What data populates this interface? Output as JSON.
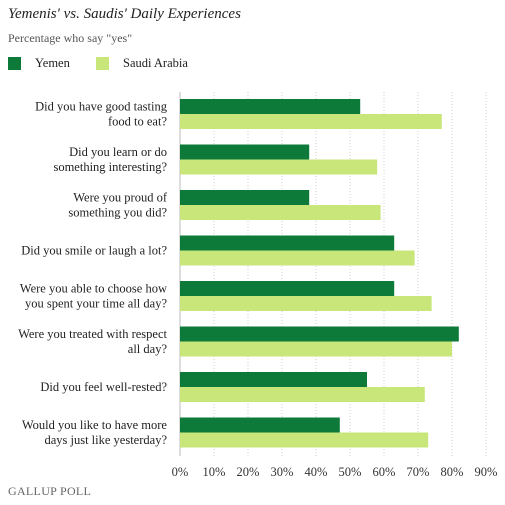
{
  "chart_data": {
    "type": "bar",
    "orientation": "horizontal",
    "title": "Yemenis' vs. Saudis' Daily Experiences",
    "subtitle": "Percentage who say \"yes\"",
    "categories": [
      [
        "Did you have good tasting",
        "food to eat?"
      ],
      [
        "Did you learn or do",
        "something interesting?"
      ],
      [
        "Were you proud of",
        "something you did?"
      ],
      [
        "Did you smile or laugh a lot?"
      ],
      [
        "Were you able to choose how",
        "you spent your time all day?"
      ],
      [
        "Were you treated with respect",
        "all day?"
      ],
      [
        "Did you feel well-rested?"
      ],
      [
        "Would you like to have more",
        "days just like yesterday?"
      ]
    ],
    "series": [
      {
        "name": "Yemen",
        "color": "#0d7a3a",
        "values": [
          53,
          38,
          38,
          63,
          63,
          82,
          55,
          47
        ]
      },
      {
        "name": "Saudi Arabia",
        "color": "#c8e67a",
        "values": [
          77,
          58,
          59,
          69,
          74,
          80,
          72,
          73
        ]
      }
    ],
    "xlim": [
      0,
      90
    ],
    "xticks": [
      0,
      10,
      20,
      30,
      40,
      50,
      60,
      70,
      80,
      90
    ],
    "tick_suffix": "%",
    "grid": true,
    "legend": "top-left"
  },
  "footer": {
    "brand": "GALLUP",
    "suffix": " POLL"
  }
}
